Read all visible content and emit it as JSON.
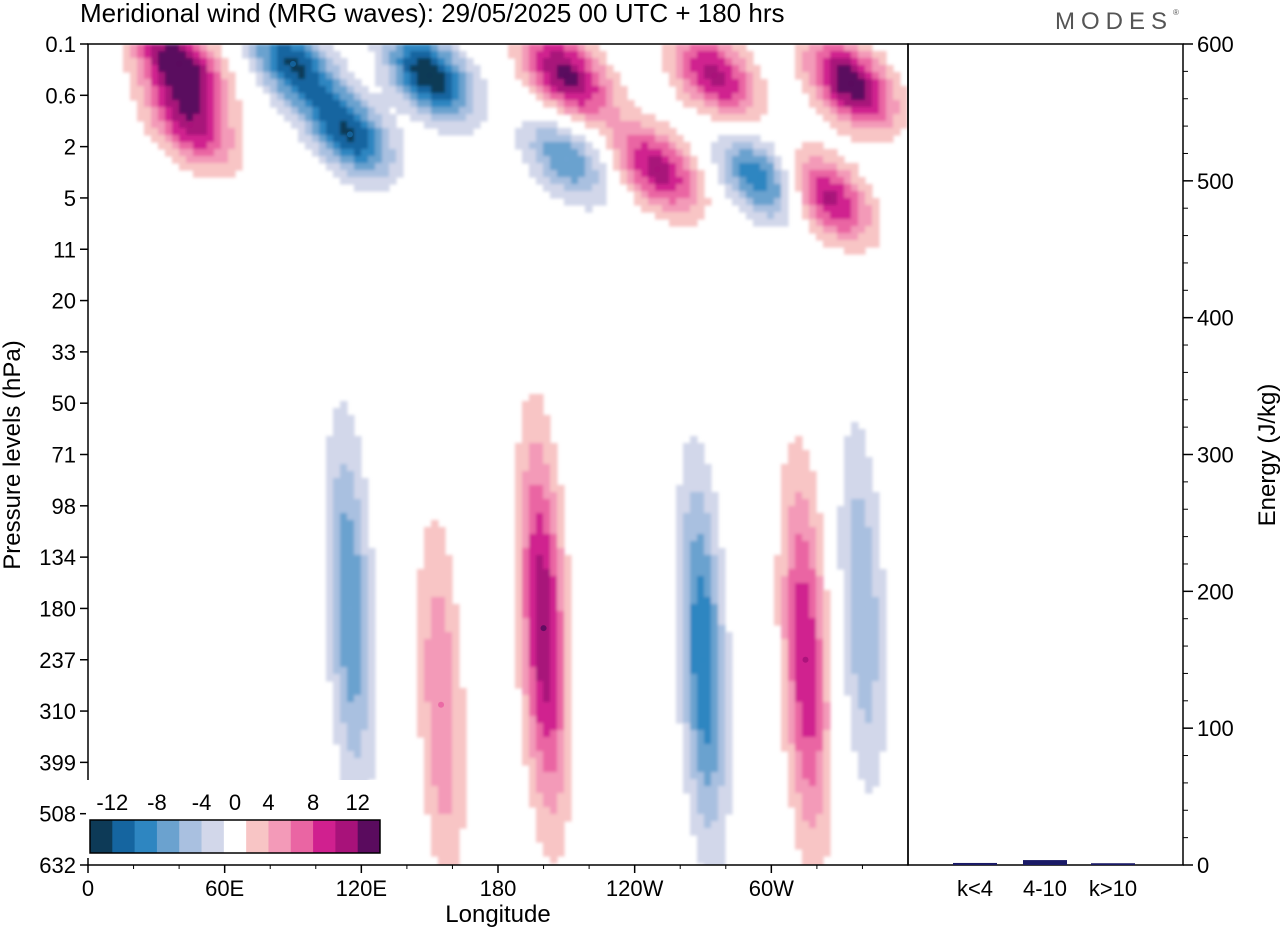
{
  "header": {
    "title": "Meridional wind (MRG waves):  29/05/2025  00 UTC  + 180 hrs",
    "brand": "MODES",
    "brand_mark": "®"
  },
  "colors": {
    "neg": [
      "#0d3a57",
      "#1565a0",
      "#2e86c1",
      "#6ba2cf",
      "#a9c0e0",
      "#d2d7ea"
    ],
    "pos": [
      "#f8c5c5",
      "#f39ab8",
      "#ea65a3",
      "#d0208f",
      "#a8127a",
      "#5a0b5e"
    ],
    "frame": "#000000",
    "bar": "#1a1a66"
  },
  "chart_data": [
    {
      "type": "heatmap",
      "title": "Meridional wind (MRG waves):  29/05/2025  00 UTC  + 180 hrs",
      "xlabel": "Longitude",
      "ylabel": "Pressure levels (hPa)",
      "x_ticks": [
        "0",
        "60E",
        "120E",
        "180",
        "120W",
        "60W"
      ],
      "x_tick_degrees": [
        0,
        60,
        120,
        180,
        240,
        300
      ],
      "xlim": [
        0,
        360
      ],
      "y_ticks": [
        "0.1",
        "0.6",
        "2",
        "5",
        "11",
        "20",
        "33",
        "50",
        "71",
        "98",
        "134",
        "180",
        "237",
        "310",
        "399",
        "508",
        "632"
      ],
      "y_axis": "pressure levels, top to bottom",
      "colorbar": {
        "labels": [
          "-12",
          "-8",
          "-4",
          "0",
          "4",
          "8",
          "12"
        ],
        "levels": [
          -14,
          -12,
          -10,
          -8,
          -6,
          -4,
          -2,
          2,
          4,
          6,
          8,
          10,
          12,
          14
        ],
        "placement": "bottom-left inside plot"
      },
      "features": [
        {
          "lon": 90,
          "level": 0.2,
          "value": -12
        },
        {
          "lon": 40,
          "level": 0.2,
          "value": 14
        },
        {
          "lon": 150,
          "level": 0.3,
          "value": -14
        },
        {
          "lon": 210,
          "level": 0.3,
          "value": 13
        },
        {
          "lon": 275,
          "level": 0.3,
          "value": 11
        },
        {
          "lon": 335,
          "level": 0.4,
          "value": 14
        },
        {
          "lon": 45,
          "level": 1.2,
          "value": 10
        },
        {
          "lon": 115,
          "level": 1.5,
          "value": -12
        },
        {
          "lon": 210,
          "level": 2.5,
          "value": -8
        },
        {
          "lon": 250,
          "level": 3,
          "value": 11
        },
        {
          "lon": 295,
          "level": 3.5,
          "value": -10
        },
        {
          "lon": 325,
          "level": 5,
          "value": 11
        },
        {
          "lon": 115,
          "level": 180,
          "value": -8
        },
        {
          "lon": 155,
          "level": 300,
          "value": 6
        },
        {
          "lon": 200,
          "level": 200,
          "value": 12
        },
        {
          "lon": 270,
          "level": 237,
          "value": -10
        },
        {
          "lon": 315,
          "level": 237,
          "value": 10
        },
        {
          "lon": 340,
          "level": 180,
          "value": -6
        }
      ]
    },
    {
      "type": "bar",
      "categories": [
        "k<4",
        "4-10",
        "k>10"
      ],
      "values": [
        0.4,
        2.5,
        0.2
      ],
      "ylabel": "Energy (J/kg)",
      "ylim": [
        0,
        600
      ],
      "y_ticks": [
        "0",
        "100",
        "200",
        "300",
        "400",
        "500",
        "600"
      ]
    }
  ]
}
